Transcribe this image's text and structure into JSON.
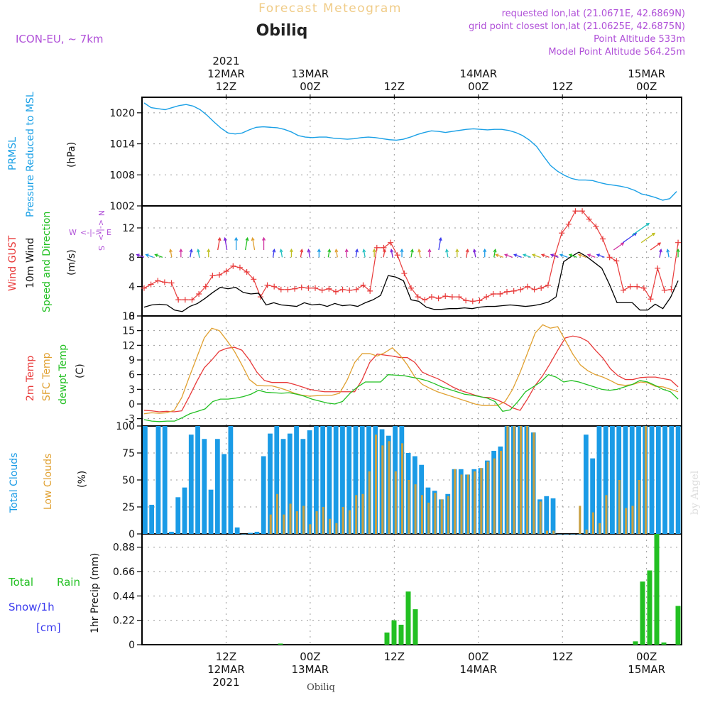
{
  "header": {
    "title": "Forecast Meteogram",
    "location": "Obiliq",
    "model": "ICON-EU, ~ 7km",
    "requested": "requested lon,lat (21.0671E, 42.6869N)",
    "grid_point": "grid point closest lon,lat (21.0625E, 42.6875N)",
    "point_altitude": "Point Altitude 533m",
    "model_altitude": "Model Point Altitude 564.25m",
    "footer_location": "Obiliq",
    "watermark": "by Angel"
  },
  "colors": {
    "pressure": "#1aa0e6",
    "gust": "#e83a3a",
    "wind": "#000000",
    "temp2m": "#e83a3a",
    "sfc": "#e0a030",
    "dewpt": "#22c022",
    "total_cloud": "#1a9be6",
    "low_cloud": "#c8a040",
    "precip": "#22c022",
    "purple": "#b050d8",
    "snow": "#3a3aee"
  },
  "time_axis": {
    "top_labels": [
      {
        "t": 12,
        "lines": [
          "2021",
          "12MAR",
          "12Z"
        ]
      },
      {
        "t": 24,
        "lines": [
          "13MAR",
          "00Z"
        ]
      },
      {
        "t": 36,
        "lines": [
          "12Z"
        ]
      },
      {
        "t": 48,
        "lines": [
          "14MAR",
          "00Z"
        ]
      },
      {
        "t": 60,
        "lines": [
          "12Z"
        ]
      },
      {
        "t": 72,
        "lines": [
          "15MAR",
          "00Z"
        ]
      }
    ],
    "bottom_labels": [
      {
        "t": 12,
        "lines": [
          "12Z",
          "12MAR",
          "2021"
        ]
      },
      {
        "t": 24,
        "lines": [
          "00Z",
          "13MAR"
        ]
      },
      {
        "t": 36,
        "lines": [
          "12Z"
        ]
      },
      {
        "t": 48,
        "lines": [
          "00Z",
          "14MAR"
        ]
      },
      {
        "t": 60,
        "lines": [
          "12Z"
        ]
      },
      {
        "t": 72,
        "lines": [
          "00Z",
          "15MAR"
        ]
      }
    ]
  },
  "panels": {
    "pressure": {
      "label1": "PRMSL",
      "label2": "Pressure Reduced to MSL",
      "unit": "(hPa)"
    },
    "wind": {
      "label1": "Wind GUST",
      "label2": "10m Wind",
      "label3": "Speed and Direction",
      "unit": "(m/s)",
      "compass": "N",
      "compass_w": "W",
      "compass_e": "E",
      "compass_s": "S"
    },
    "temp": {
      "label1": "2m Temp",
      "label2": "SFC Temp",
      "label3": "dewpt Temp",
      "unit": "(C)"
    },
    "clouds": {
      "label1": "Total Clouds",
      "label2": "Low Clouds",
      "unit": "(%)"
    },
    "precip": {
      "label1": "Total",
      "label1b": "Rain",
      "label2": "Snow/1h",
      "label3": "[cm]",
      "unit": "1hr Precip (mm)"
    }
  },
  "chart_data": [
    {
      "type": "line",
      "title": "PRMSL Pressure Reduced to MSL",
      "ylabel": "(hPa)",
      "ylim": [
        1002,
        1023
      ],
      "yticks": [
        1002,
        1008,
        1014,
        1020
      ],
      "series": [
        {
          "name": "PRMSL",
          "x": [
            0,
            1,
            2,
            3,
            4,
            5,
            6,
            7,
            8,
            9,
            10,
            11,
            12,
            13,
            14,
            15,
            16,
            17,
            18,
            19,
            20,
            21,
            22,
            23,
            24,
            25,
            26,
            27,
            28,
            29,
            30,
            31,
            32,
            33,
            34,
            35,
            36,
            37,
            38,
            39,
            40,
            41,
            42,
            43,
            44,
            45,
            46,
            47,
            48,
            49,
            50,
            51,
            52,
            53,
            54,
            55,
            56,
            57,
            58,
            59,
            60,
            61,
            62,
            63,
            64,
            65,
            66,
            67,
            68,
            69,
            70,
            71,
            72,
            73,
            74,
            75,
            76
          ],
          "values": [
            1021.9,
            1021.0,
            1020.8,
            1020.6,
            1021.0,
            1021.4,
            1021.6,
            1021.3,
            1020.6,
            1019.5,
            1018.2,
            1017.0,
            1016.1,
            1015.9,
            1016.1,
            1016.7,
            1017.2,
            1017.3,
            1017.2,
            1017.1,
            1016.8,
            1016.3,
            1015.6,
            1015.3,
            1015.2,
            1015.3,
            1015.3,
            1015.1,
            1015.0,
            1014.9,
            1015.0,
            1015.2,
            1015.3,
            1015.2,
            1015.0,
            1014.8,
            1014.7,
            1014.9,
            1015.3,
            1015.8,
            1016.2,
            1016.5,
            1016.4,
            1016.2,
            1016.4,
            1016.6,
            1016.8,
            1016.9,
            1016.8,
            1016.7,
            1016.8,
            1016.8,
            1016.6,
            1016.2,
            1015.6,
            1014.7,
            1013.5,
            1011.6,
            1009.8,
            1008.7,
            1007.9,
            1007.3,
            1007.0,
            1007.0,
            1006.9,
            1006.5,
            1006.2,
            1006.0,
            1005.8,
            1005.5,
            1005.0,
            1004.3,
            1004.0,
            1003.6,
            1003.1,
            1003.4,
            1004.8
          ]
        }
      ]
    },
    {
      "type": "line",
      "title": "Wind GUST / 10m Wind Speed and Direction",
      "ylabel": "(m/s)",
      "ylim": [
        0,
        15
      ],
      "yticks": [
        0,
        4,
        8,
        12
      ],
      "series": [
        {
          "name": "Wind GUST",
          "values": [
            3.8,
            4.3,
            4.8,
            4.6,
            4.5,
            2.2,
            2.2,
            2.2,
            3.0,
            4.0,
            5.5,
            5.6,
            6.1,
            6.8,
            6.6,
            6.0,
            5.0,
            2.6,
            4.2,
            4.0,
            3.6,
            3.6,
            3.7,
            3.9,
            3.8,
            3.8,
            3.5,
            3.7,
            3.3,
            3.6,
            3.5,
            3.6,
            4.2,
            3.4,
            9.3,
            9.3,
            10.0,
            8.3,
            5.8,
            3.8,
            2.6,
            2.2,
            2.6,
            2.4,
            2.7,
            2.6,
            2.6,
            2.1,
            2.0,
            2.1,
            2.6,
            3.0,
            3.0,
            3.3,
            3.4,
            3.6,
            4.0,
            3.6,
            3.8,
            4.2,
            8.2,
            11.3,
            12.5,
            14.3,
            14.3,
            13.2,
            12.2,
            10.5,
            8.0,
            7.5,
            3.5,
            4.0,
            4.0,
            3.8,
            2.3,
            6.5,
            3.5,
            3.6,
            10.0
          ]
        },
        {
          "name": "10m Wind",
          "values": [
            1.2,
            1.5,
            1.6,
            1.5,
            0.8,
            0.6,
            1.3,
            1.7,
            2.4,
            3.2,
            3.9,
            3.7,
            3.9,
            3.2,
            3.0,
            3.1,
            1.5,
            1.8,
            1.5,
            1.4,
            1.3,
            1.8,
            1.5,
            1.6,
            1.3,
            1.7,
            1.4,
            1.5,
            1.3,
            1.8,
            2.2,
            2.8,
            5.5,
            5.3,
            4.8,
            2.2,
            2.0,
            1.2,
            0.9,
            0.9,
            1.0,
            1.0,
            1.1,
            1.0,
            1.2,
            1.3,
            1.3,
            1.4,
            1.5,
            1.4,
            1.3,
            1.4,
            1.6,
            1.9,
            2.6,
            7.4,
            8.1,
            8.7,
            8.1,
            7.3,
            6.5,
            4.3,
            1.8,
            1.8,
            1.8,
            0.8,
            0.8,
            1.6,
            1.0,
            2.5,
            4.8
          ]
        },
        {
          "name": "Direction (arrows)",
          "values": [
            8,
            8,
            8,
            8,
            8,
            8,
            8,
            8,
            9,
            9,
            9,
            9,
            9,
            9,
            8,
            8,
            8,
            8,
            8,
            8,
            8,
            8,
            8,
            8,
            8,
            8,
            8,
            8,
            8,
            8,
            8,
            8,
            9,
            8,
            8,
            8,
            8,
            8,
            8,
            8,
            8,
            8,
            8,
            8,
            8,
            8,
            8,
            8,
            8,
            8,
            8,
            9,
            10,
            11,
            10,
            9,
            8,
            8,
            8
          ]
        }
      ]
    },
    {
      "type": "line",
      "title": "2m Temp / SFC Temp / dewpt Temp",
      "ylabel": "(C)",
      "ylim": [
        -4.5,
        18
      ],
      "yticks": [
        -3,
        0,
        3,
        6,
        9,
        12,
        15,
        18
      ],
      "series": [
        {
          "name": "2m Temp",
          "values": [
            -1.3,
            -1.4,
            -1.6,
            -1.5,
            -1.6,
            -1.4,
            1.5,
            4.6,
            7.4,
            9.0,
            10.8,
            11.4,
            11.6,
            11.0,
            9.0,
            6.5,
            4.8,
            4.4,
            4.4,
            4.4,
            4.0,
            3.5,
            3.0,
            2.7,
            2.5,
            2.5,
            2.5,
            2.5,
            2.5,
            5.0,
            8.5,
            10.2,
            10.0,
            9.8,
            9.5,
            9.5,
            8.5,
            6.5,
            5.8,
            5.2,
            4.4,
            3.5,
            2.8,
            2.3,
            1.8,
            1.4,
            1.3,
            0.8,
            0.1,
            -0.8,
            -1.3,
            1.1,
            3.8,
            5.8,
            8.3,
            11.0,
            13.5,
            13.9,
            13.6,
            12.8,
            11.0,
            9.4,
            7.2,
            5.8,
            5.0,
            5.0,
            5.4,
            5.5,
            5.5,
            5.2,
            4.9,
            3.5
          ]
        },
        {
          "name": "SFC Temp",
          "values": [
            -2.0,
            -1.8,
            -1.9,
            -1.8,
            -1.3,
            1.3,
            5.5,
            9.5,
            13.5,
            15.5,
            15.0,
            13.0,
            10.8,
            8.0,
            5.0,
            3.8,
            3.7,
            3.7,
            3.3,
            2.8,
            2.2,
            1.8,
            1.6,
            1.7,
            1.8,
            1.8,
            2.2,
            4.9,
            8.5,
            10.3,
            10.3,
            9.8,
            10.5,
            11.5,
            10.0,
            8.0,
            5.5,
            4.0,
            3.2,
            2.5,
            2.0,
            1.5,
            1.0,
            0.5,
            0.0,
            -0.3,
            -0.3,
            -0.3,
            0.5,
            3.0,
            6.5,
            10.5,
            14.5,
            16.2,
            15.5,
            15.8,
            13.0,
            10.2,
            8.0,
            6.8,
            6.0,
            5.5,
            4.8,
            4.0,
            3.8,
            4.0,
            4.5,
            4.3,
            3.6,
            3.5,
            3.0,
            2.5
          ]
        },
        {
          "name": "dewpt Temp",
          "values": [
            -3.2,
            -3.5,
            -3.6,
            -3.5,
            -3.5,
            -2.8,
            -2.0,
            -1.5,
            -1.0,
            0.5,
            1.0,
            1.0,
            1.2,
            1.5,
            2.0,
            2.8,
            2.4,
            2.3,
            2.2,
            2.3,
            2.0,
            1.6,
            1.0,
            0.6,
            0.2,
            0.0,
            0.5,
            2.2,
            3.5,
            4.5,
            4.5,
            4.5,
            6.0,
            5.9,
            5.8,
            5.5,
            5.2,
            4.8,
            4.2,
            3.5,
            3.0,
            2.5,
            2.0,
            1.8,
            1.5,
            1.2,
            0.5,
            -1.5,
            -1.2,
            0.5,
            2.5,
            3.5,
            4.5,
            6.0,
            5.5,
            4.5,
            4.8,
            4.5,
            4.0,
            3.5,
            3.0,
            2.8,
            3.0,
            3.5,
            4.0,
            4.8,
            4.5,
            3.8,
            3.0,
            2.5,
            1.0
          ]
        }
      ]
    },
    {
      "type": "bar",
      "title": "Total Clouds / Low Clouds",
      "ylabel": "(%)",
      "ylim": [
        0,
        100
      ],
      "yticks": [
        0,
        25,
        50,
        75,
        100
      ],
      "series": [
        {
          "name": "Total Clouds",
          "values": [
            100,
            27,
            100,
            100,
            2,
            34,
            43,
            92,
            100,
            88,
            41,
            88,
            74,
            100,
            6,
            0,
            1,
            2,
            72,
            93,
            100,
            88,
            93,
            100,
            88,
            96,
            100,
            100,
            100,
            100,
            100,
            100,
            100,
            100,
            100,
            100,
            97,
            91,
            100,
            100,
            75,
            72,
            64,
            43,
            40,
            32,
            37,
            60,
            60,
            55,
            60,
            61,
            68,
            77,
            81,
            100,
            100,
            100,
            100,
            94,
            32,
            35,
            33,
            0,
            0,
            0,
            0,
            92,
            70,
            100,
            100,
            100,
            100,
            100,
            100,
            100,
            100,
            100,
            100,
            100,
            100,
            100
          ]
        },
        {
          "name": "Low Clouds",
          "values": [
            0,
            0,
            0,
            0,
            0,
            0,
            0,
            0,
            0,
            0,
            0,
            0,
            0,
            0,
            0,
            0,
            0,
            0,
            0,
            18,
            37,
            18,
            28,
            21,
            26,
            9,
            21,
            25,
            14,
            10,
            25,
            22,
            36,
            37,
            58,
            92,
            82,
            86,
            58,
            84,
            50,
            46,
            36,
            29,
            38,
            32,
            35,
            60,
            55,
            55,
            58,
            61,
            67,
            70,
            77,
            100,
            100,
            100,
            100,
            94,
            30,
            3,
            3,
            0,
            0,
            0,
            26,
            4,
            20,
            10,
            36,
            0,
            50,
            24,
            26,
            50,
            100
          ]
        }
      ]
    },
    {
      "type": "bar",
      "title": "1hr Precip",
      "ylabel": "1hr Precip (mm)",
      "ylim": [
        0,
        1.0
      ],
      "yticks": [
        0,
        0.22,
        0.44,
        0.66,
        0.88
      ],
      "series": [
        {
          "name": "Total Rain",
          "values": [
            0,
            0,
            0,
            0,
            0,
            0,
            0,
            0,
            0,
            0,
            0,
            0,
            0,
            0,
            0,
            0,
            0,
            0,
            0,
            0.01,
            0,
            0,
            0,
            0,
            0,
            0,
            0,
            0,
            0,
            0,
            0,
            0,
            0,
            0,
            0.11,
            0.22,
            0.18,
            0.48,
            0.32,
            0,
            0,
            0,
            0,
            0,
            0,
            0,
            0,
            0,
            0,
            0,
            0,
            0,
            0,
            0,
            0,
            0,
            0,
            0,
            0,
            0,
            0,
            0,
            0,
            0,
            0,
            0,
            0,
            0,
            0,
            0.03,
            0.57,
            0.67,
            1.0,
            0.02,
            0,
            0.35
          ]
        }
      ]
    }
  ]
}
